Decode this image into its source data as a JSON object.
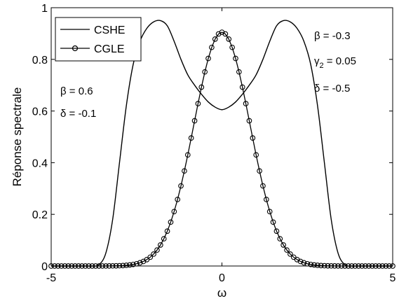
{
  "chart_data": {
    "type": "line",
    "xlabel": "ω",
    "ylabel": "Réponse spectrale",
    "xlim": [
      -5,
      5
    ],
    "ylim": [
      0,
      1
    ],
    "xticks": [
      -5,
      0,
      5
    ],
    "yticks": [
      0,
      0.2,
      0.4,
      0.6,
      0.8,
      1
    ],
    "xtick_labels": [
      "-5",
      "0",
      "5"
    ],
    "ytick_labels": [
      "0",
      "0.2",
      "0.4",
      "0.6",
      "0.8",
      "1"
    ],
    "grid": false,
    "legend_position": "top-left",
    "series": [
      {
        "name": "CSHE",
        "marker": "none",
        "x": [
          -5,
          -4.5,
          -4,
          -3.8,
          -3.6,
          -3.4,
          -3.2,
          -3.0,
          -2.8,
          -2.6,
          -2.4,
          -2.2,
          -2.0,
          -1.8,
          -1.6,
          -1.4,
          -1.2,
          -1.0,
          -0.8,
          -0.6,
          -0.4,
          -0.2,
          0,
          0.2,
          0.4,
          0.6,
          0.8,
          1.0,
          1.2,
          1.4,
          1.6,
          1.8,
          2.0,
          2.2,
          2.4,
          2.6,
          2.8,
          3.0,
          3.2,
          3.4,
          3.6,
          3.8,
          4.0,
          4.5,
          5
        ],
        "y": [
          0,
          0,
          0,
          0,
          0.005,
          0.05,
          0.18,
          0.4,
          0.62,
          0.78,
          0.87,
          0.92,
          0.945,
          0.95,
          0.93,
          0.87,
          0.8,
          0.74,
          0.7,
          0.665,
          0.635,
          0.615,
          0.605,
          0.615,
          0.635,
          0.665,
          0.7,
          0.74,
          0.8,
          0.87,
          0.93,
          0.95,
          0.945,
          0.92,
          0.87,
          0.78,
          0.62,
          0.4,
          0.18,
          0.05,
          0.005,
          0,
          0,
          0,
          0
        ]
      },
      {
        "name": "CGLE",
        "marker": "circle",
        "peak": 0.905,
        "sigma": 0.82,
        "x_step": 0.1
      }
    ]
  },
  "annotations": {
    "left": {
      "beta": "β = 0.6",
      "delta": "δ = -0.1"
    },
    "right": {
      "beta": "β = -0.3",
      "gamma_symbol": "γ",
      "gamma_sub": "2",
      "gamma_value": " = 0.05",
      "delta": "δ = -0.5"
    }
  },
  "legend": {
    "items": [
      {
        "label": "CSHE",
        "marker": "none"
      },
      {
        "label": "CGLE",
        "marker": "circle"
      }
    ]
  }
}
